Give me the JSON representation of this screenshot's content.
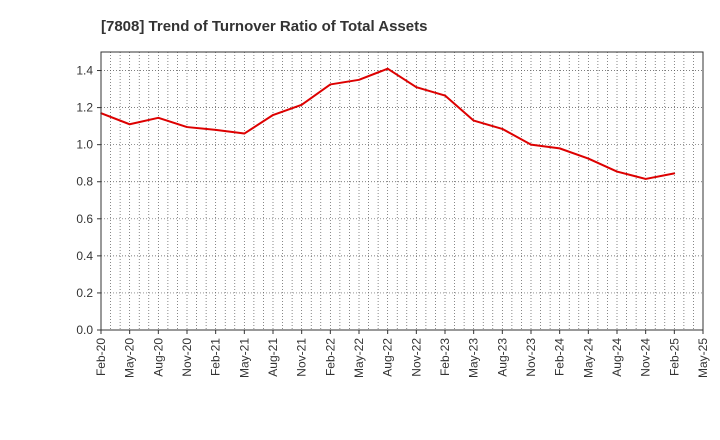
{
  "chart_data": {
    "type": "line",
    "title": "[7808]  Trend of Turnover Ratio of Total Assets",
    "xlabel": "",
    "ylabel": "",
    "x": [
      "Feb-20",
      "May-20",
      "Aug-20",
      "Nov-20",
      "Feb-21",
      "May-21",
      "Aug-21",
      "Nov-21",
      "Feb-22",
      "May-22",
      "Aug-22",
      "Nov-22",
      "Feb-23",
      "May-23",
      "Aug-23",
      "Nov-23",
      "Feb-24",
      "May-24",
      "Aug-24",
      "Nov-24",
      "Feb-25"
    ],
    "x_ticks": [
      "Feb-20",
      "May-20",
      "Aug-20",
      "Nov-20",
      "Feb-21",
      "May-21",
      "Aug-21",
      "Nov-21",
      "Feb-22",
      "May-22",
      "Aug-22",
      "Nov-22",
      "Feb-23",
      "May-23",
      "Aug-23",
      "Nov-23",
      "Feb-24",
      "May-24",
      "Aug-24",
      "Nov-24",
      "Feb-25",
      "May-25"
    ],
    "series": [
      {
        "values": [
          1.17,
          1.11,
          1.145,
          1.095,
          1.08,
          1.06,
          1.16,
          1.215,
          1.325,
          1.35,
          1.41,
          1.31,
          1.265,
          1.13,
          1.085,
          1.0,
          0.98,
          0.925,
          0.855,
          0.815,
          0.845
        ],
        "color": "#dd0000"
      }
    ],
    "ylim": [
      0,
      1.5
    ],
    "y_ticks": [
      "0.0",
      "0.2",
      "0.4",
      "0.6",
      "0.8",
      "1.0",
      "1.2",
      "1.4"
    ],
    "grid": true,
    "grid_style": "dotted",
    "legend": "none"
  }
}
